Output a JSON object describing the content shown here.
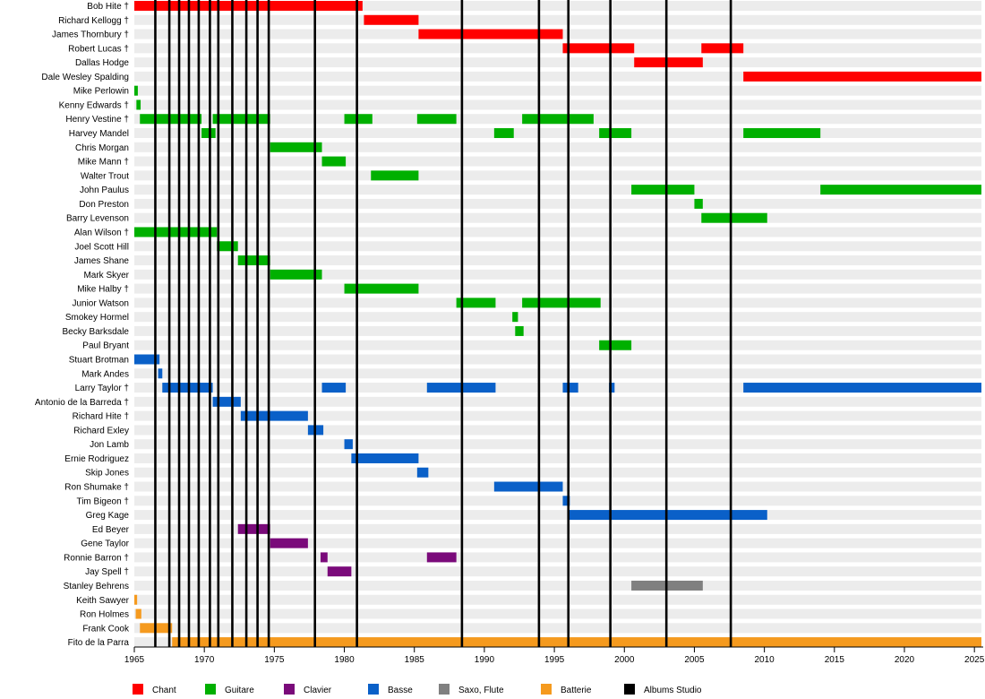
{
  "chart_data": {
    "type": "timeline",
    "xlim": [
      1965,
      2025.5
    ],
    "x_ticks": [
      1965,
      1970,
      1975,
      1980,
      1985,
      1990,
      1995,
      2000,
      2005,
      2010,
      2015,
      2020,
      2025
    ],
    "grid": false,
    "legend_position": "bottom",
    "categories": [
      {
        "key": "chant",
        "label": "Chant",
        "color": "#ff0000"
      },
      {
        "key": "guitare",
        "label": "Guitare",
        "color": "#00b000"
      },
      {
        "key": "clavier",
        "label": "Clavier",
        "color": "#7a0a7a"
      },
      {
        "key": "basse",
        "label": "Basse",
        "color": "#0a60c8"
      },
      {
        "key": "saxo",
        "label": "Saxo, Flute",
        "color": "#808080"
      },
      {
        "key": "batterie",
        "label": "Batterie",
        "color": "#f59a1e"
      },
      {
        "key": "albums",
        "label": "Albums Studio",
        "color": "#000000"
      }
    ],
    "album_years": [
      1966.5,
      1967.5,
      1968.2,
      1968.9,
      1969.6,
      1970.4,
      1971.0,
      1972.0,
      1973.0,
      1973.8,
      1974.6,
      1977.9,
      1980.9,
      1988.4,
      1993.9,
      1996.0,
      1999.0,
      2003.0,
      2007.6
    ],
    "members": [
      {
        "name": "Bob Hite †",
        "spans": [
          {
            "c": "chant",
            "s": 1965.0,
            "e": 1981.3
          }
        ]
      },
      {
        "name": "Richard Kellogg †",
        "spans": [
          {
            "c": "chant",
            "s": 1981.4,
            "e": 1985.3
          }
        ]
      },
      {
        "name": "James Thornbury †",
        "spans": [
          {
            "c": "chant",
            "s": 1985.3,
            "e": 1995.6
          }
        ]
      },
      {
        "name": "Robert Lucas †",
        "spans": [
          {
            "c": "chant",
            "s": 1995.6,
            "e": 2000.7
          },
          {
            "c": "chant",
            "s": 2005.5,
            "e": 2008.5
          }
        ]
      },
      {
        "name": "Dallas Hodge",
        "spans": [
          {
            "c": "chant",
            "s": 2000.7,
            "e": 2005.6
          }
        ]
      },
      {
        "name": "Dale Wesley Spalding",
        "spans": [
          {
            "c": "chant",
            "s": 2008.5,
            "e": 2025.5
          }
        ]
      },
      {
        "name": "Mike Perlowin",
        "spans": [
          {
            "c": "guitare",
            "s": 1965.0,
            "e": 1965.25
          }
        ]
      },
      {
        "name": "Kenny Edwards †",
        "spans": [
          {
            "c": "guitare",
            "s": 1965.15,
            "e": 1965.45
          }
        ]
      },
      {
        "name": "Henry Vestine †",
        "spans": [
          {
            "c": "guitare",
            "s": 1965.4,
            "e": 1969.8
          },
          {
            "c": "guitare",
            "s": 1970.6,
            "e": 1974.7
          },
          {
            "c": "guitare",
            "s": 1980.0,
            "e": 1982.0
          },
          {
            "c": "guitare",
            "s": 1985.2,
            "e": 1988.0
          },
          {
            "c": "guitare",
            "s": 1992.7,
            "e": 1997.8
          }
        ]
      },
      {
        "name": "Harvey Mandel",
        "spans": [
          {
            "c": "guitare",
            "s": 1969.8,
            "e": 1970.8
          },
          {
            "c": "guitare",
            "s": 1990.7,
            "e": 1992.1
          },
          {
            "c": "guitare",
            "s": 1998.2,
            "e": 2000.5
          },
          {
            "c": "guitare",
            "s": 2008.5,
            "e": 2014.0
          }
        ]
      },
      {
        "name": "Chris Morgan",
        "spans": [
          {
            "c": "guitare",
            "s": 1974.7,
            "e": 1978.4
          }
        ]
      },
      {
        "name": "Mike Mann †",
        "spans": [
          {
            "c": "guitare",
            "s": 1978.4,
            "e": 1980.1
          }
        ]
      },
      {
        "name": "Walter Trout",
        "spans": [
          {
            "c": "guitare",
            "s": 1981.9,
            "e": 1985.3
          }
        ]
      },
      {
        "name": "John Paulus",
        "spans": [
          {
            "c": "guitare",
            "s": 2000.5,
            "e": 2005.0
          },
          {
            "c": "guitare",
            "s": 2014.0,
            "e": 2025.5
          }
        ]
      },
      {
        "name": "Don Preston",
        "spans": [
          {
            "c": "guitare",
            "s": 2005.0,
            "e": 2005.6
          }
        ]
      },
      {
        "name": "Barry Levenson",
        "spans": [
          {
            "c": "guitare",
            "s": 2005.5,
            "e": 2010.2
          }
        ]
      },
      {
        "name": "Alan Wilson †",
        "spans": [
          {
            "c": "guitare",
            "s": 1965.0,
            "e": 1970.9
          }
        ]
      },
      {
        "name": "Joel Scott Hill",
        "spans": [
          {
            "c": "guitare",
            "s": 1970.9,
            "e": 1972.4
          }
        ]
      },
      {
        "name": "James Shane",
        "spans": [
          {
            "c": "guitare",
            "s": 1972.4,
            "e": 1974.7
          }
        ]
      },
      {
        "name": "Mark Skyer",
        "spans": [
          {
            "c": "guitare",
            "s": 1974.7,
            "e": 1978.4
          }
        ]
      },
      {
        "name": "Mike Halby †",
        "spans": [
          {
            "c": "guitare",
            "s": 1980.0,
            "e": 1985.3
          }
        ]
      },
      {
        "name": "Junior Watson",
        "spans": [
          {
            "c": "guitare",
            "s": 1988.0,
            "e": 1990.8
          },
          {
            "c": "guitare",
            "s": 1992.7,
            "e": 1998.3
          }
        ]
      },
      {
        "name": "Smokey Hormel",
        "spans": [
          {
            "c": "guitare",
            "s": 1992.0,
            "e": 1992.4
          }
        ]
      },
      {
        "name": "Becky Barksdale",
        "spans": [
          {
            "c": "guitare",
            "s": 1992.2,
            "e": 1992.8
          }
        ]
      },
      {
        "name": "Paul Bryant",
        "spans": [
          {
            "c": "guitare",
            "s": 1998.2,
            "e": 2000.5
          }
        ]
      },
      {
        "name": "Stuart Brotman",
        "spans": [
          {
            "c": "basse",
            "s": 1965.0,
            "e": 1966.8
          }
        ]
      },
      {
        "name": "Mark Andes",
        "spans": [
          {
            "c": "basse",
            "s": 1966.7,
            "e": 1967.0
          }
        ]
      },
      {
        "name": "Larry Taylor †",
        "spans": [
          {
            "c": "basse",
            "s": 1967.0,
            "e": 1970.6
          },
          {
            "c": "basse",
            "s": 1978.4,
            "e": 1980.1
          },
          {
            "c": "basse",
            "s": 1985.9,
            "e": 1990.8
          },
          {
            "c": "basse",
            "s": 1995.6,
            "e": 1996.7
          },
          {
            "c": "basse",
            "s": 1998.9,
            "e": 1999.3
          },
          {
            "c": "basse",
            "s": 2008.5,
            "e": 2025.5
          }
        ]
      },
      {
        "name": "Antonio de la Barreda †",
        "spans": [
          {
            "c": "basse",
            "s": 1970.6,
            "e": 1972.6
          }
        ]
      },
      {
        "name": "Richard Hite †",
        "spans": [
          {
            "c": "basse",
            "s": 1972.6,
            "e": 1977.4
          }
        ]
      },
      {
        "name": "Richard Exley",
        "spans": [
          {
            "c": "basse",
            "s": 1977.4,
            "e": 1978.5
          }
        ]
      },
      {
        "name": "Jon Lamb",
        "spans": [
          {
            "c": "basse",
            "s": 1980.0,
            "e": 1980.6
          }
        ]
      },
      {
        "name": "Ernie Rodriguez",
        "spans": [
          {
            "c": "basse",
            "s": 1980.5,
            "e": 1985.3
          }
        ]
      },
      {
        "name": "Skip Jones",
        "spans": [
          {
            "c": "basse",
            "s": 1985.2,
            "e": 1986.0
          }
        ]
      },
      {
        "name": "Ron Shumake †",
        "spans": [
          {
            "c": "basse",
            "s": 1990.7,
            "e": 1995.6
          }
        ]
      },
      {
        "name": "Tim Bigeon †",
        "spans": [
          {
            "c": "basse",
            "s": 1995.6,
            "e": 1996.1
          }
        ]
      },
      {
        "name": "Greg Kage",
        "spans": [
          {
            "c": "basse",
            "s": 1996.0,
            "e": 2010.2
          }
        ]
      },
      {
        "name": "Ed Beyer",
        "spans": [
          {
            "c": "clavier",
            "s": 1972.4,
            "e": 1974.7
          }
        ]
      },
      {
        "name": "Gene Taylor",
        "spans": [
          {
            "c": "clavier",
            "s": 1974.7,
            "e": 1977.4
          }
        ]
      },
      {
        "name": "Ronnie Barron †",
        "spans": [
          {
            "c": "clavier",
            "s": 1978.3,
            "e": 1978.8
          },
          {
            "c": "clavier",
            "s": 1985.9,
            "e": 1988.0
          }
        ]
      },
      {
        "name": "Jay Spell †",
        "spans": [
          {
            "c": "clavier",
            "s": 1978.8,
            "e": 1980.5
          }
        ]
      },
      {
        "name": "Stanley Behrens",
        "spans": [
          {
            "c": "saxo",
            "s": 2000.5,
            "e": 2005.6
          }
        ]
      },
      {
        "name": "Keith Sawyer",
        "spans": [
          {
            "c": "batterie",
            "s": 1965.0,
            "e": 1965.2
          }
        ]
      },
      {
        "name": "Ron Holmes",
        "spans": [
          {
            "c": "batterie",
            "s": 1965.1,
            "e": 1965.5
          }
        ]
      },
      {
        "name": "Frank Cook",
        "spans": [
          {
            "c": "batterie",
            "s": 1965.4,
            "e": 1967.7
          }
        ]
      },
      {
        "name": "Fito de la Parra",
        "spans": [
          {
            "c": "batterie",
            "s": 1967.7,
            "e": 2025.5
          }
        ]
      }
    ]
  }
}
